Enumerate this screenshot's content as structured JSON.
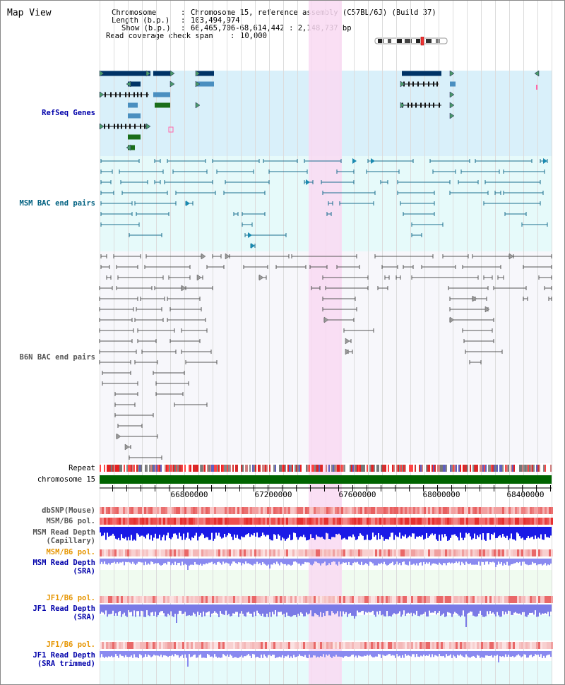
{
  "page": {
    "title": "Map View",
    "info": {
      "chromosome_key": "Chromosome",
      "chromosome_val": "Chromosome 15, reference assembly (C57BL/6J) (Build 37)",
      "length_key": "Length (b.p.)",
      "length_val": "103,494,974",
      "show_key": "Show (b.p.)",
      "show_val": "66,465,706-68,614,442 : 2,148,737 bp",
      "span_key": "Read coverage check span",
      "span_val": "10,000"
    }
  },
  "tracks": {
    "refseq": "RefSeq Genes",
    "msm_bac": "MSM BAC end pairs",
    "b6n_bac": "B6N BAC end pairs",
    "repeat": "Repeat",
    "chromosome": "chromosome 15",
    "dbsnp": "dbSNP(Mouse)",
    "msm_b6_pol_1": "MSM/B6 pol.",
    "msm_read_depth_cap_1": "MSM Read Depth",
    "msm_read_depth_cap_2": "(Capillary)",
    "msm_b6_pol_2": "MSM/B6 pol.",
    "msm_read_depth_sra_1": "MSM Read Depth",
    "msm_read_depth_sra_2": "(SRA)",
    "jf1_b6_pol_1": "JF1/B6 pol.",
    "jf1_read_depth_sra_1": "JF1 Read Depth",
    "jf1_read_depth_sra_2": "(SRA)",
    "jf1_b6_pol_2": "JF1/B6 pol.",
    "jf1_read_depth_trim_1": "JF1 Read Depth",
    "jf1_read_depth_trim_2": "(SRA trimmed)"
  },
  "axis": {
    "ticks": [
      "66800000",
      "67200000",
      "67600000",
      "68000000",
      "68400000"
    ]
  },
  "colors": {
    "refseq_bg": "#d9f0fa",
    "msm_bg": "#e6fafa",
    "b6n_bg": "#f7f7fb",
    "highlight": "#f9d9f2",
    "refseq_label": "#0000aa",
    "msm_label": "#006080",
    "b6n_label": "#555555",
    "orange_label": "#e69500",
    "blue_label": "#0000aa",
    "chromosome_bar": "#006400"
  }
}
